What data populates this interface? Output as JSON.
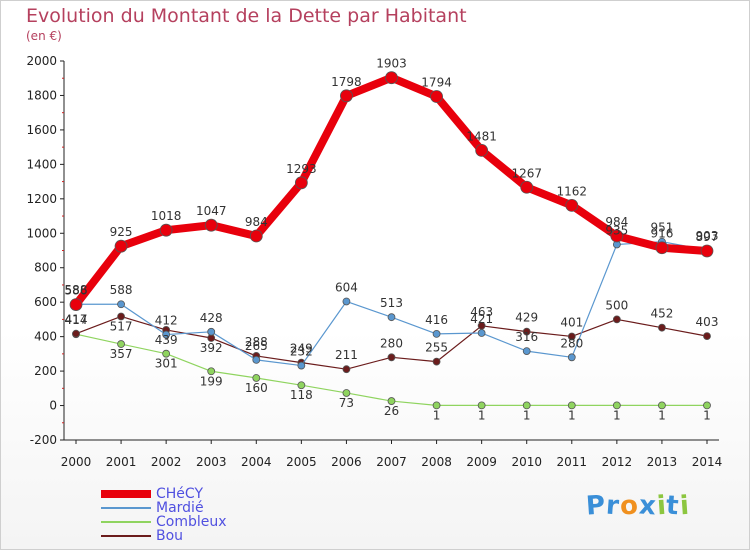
{
  "chart_data": {
    "type": "line",
    "title": "Evolution du Montant de la Dette par Habitant",
    "subtitle": "(en €)",
    "x": [
      "2000",
      "2001",
      "2002",
      "2003",
      "2004",
      "2005",
      "2006",
      "2007",
      "2008",
      "2009",
      "2010",
      "2011",
      "2012",
      "2013",
      "2014"
    ],
    "y_ticks": [
      -200,
      0,
      200,
      400,
      600,
      800,
      1000,
      1200,
      1400,
      1600,
      1800,
      2000
    ],
    "ylim": [
      -200,
      2000
    ],
    "grid": false,
    "legend_position": "bottom-left",
    "series": [
      {
        "name": "CHéCY",
        "color": "#e8000c",
        "values": [
          586,
          925,
          1018,
          1047,
          984,
          1293,
          1798,
          1903,
          1794,
          1481,
          1267,
          1162,
          984,
          916,
          897
        ]
      },
      {
        "name": "Mardié",
        "color": "#5a97cf",
        "values": [
          588,
          588,
          412,
          428,
          265,
          232,
          604,
          513,
          416,
          421,
          316,
          280,
          935,
          951,
          903
        ]
      },
      {
        "name": "Combleux",
        "color": "#8fd45f",
        "values": [
          414,
          357,
          301,
          199,
          160,
          118,
          73,
          26,
          1,
          1,
          1,
          1,
          1,
          1,
          1
        ]
      },
      {
        "name": "Bou",
        "color": "#6b1c1c",
        "values": [
          417,
          517,
          439,
          392,
          288,
          249,
          211,
          280,
          255,
          463,
          429,
          401,
          500,
          452,
          403
        ]
      }
    ]
  },
  "logo": {
    "letters": [
      "P",
      "r",
      "o",
      "x",
      "i",
      "t",
      "i"
    ],
    "colors": [
      "#3a8fd8",
      "#3a8fd8",
      "#f0901e",
      "#3a8fd8",
      "#8cc63f",
      "#3a8fd8",
      "#8cc63f"
    ]
  }
}
